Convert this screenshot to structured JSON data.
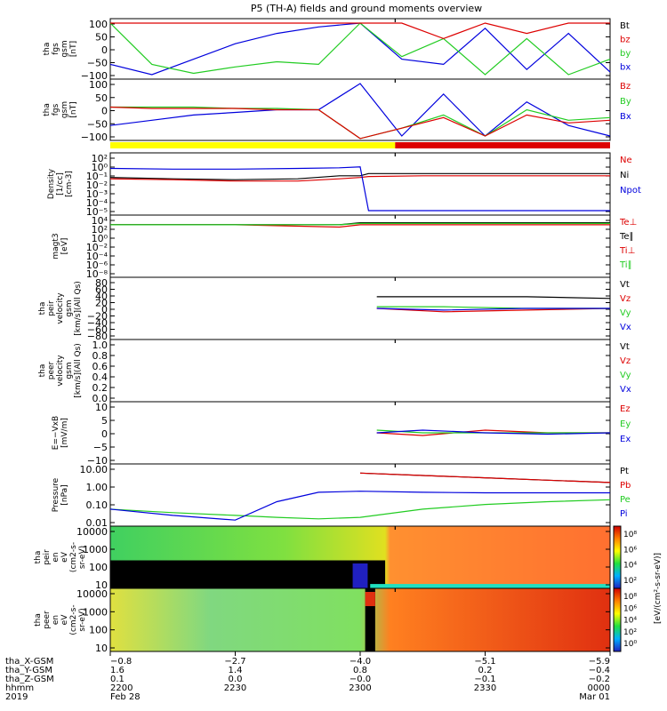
{
  "title": "P5 (TH-A) fields and ground moments overview",
  "colors": {
    "black": "#000000",
    "red": "#dd0000",
    "green": "#22cc22",
    "blue": "#0000dd",
    "yellow": "#ffff00",
    "bar_red": "#dd0000"
  },
  "panels": [
    {
      "id": "fgs-gsm",
      "ylabel": [
        "tha",
        "fgs",
        "gsm",
        "[nT]"
      ],
      "ticks": [
        "100",
        "50",
        "0",
        "−50",
        "−100"
      ],
      "ylim": [
        -100,
        100
      ],
      "scale": "linear",
      "legend": [
        {
          "text": "Bt",
          "color": "#000000"
        },
        {
          "text": "bz",
          "color": "#dd0000"
        },
        {
          "text": "by",
          "color": "#22cc22"
        },
        {
          "text": "bx",
          "color": "#0000dd"
        }
      ]
    },
    {
      "id": "fgs-gsm-2",
      "ylabel": [
        "tha",
        "fgs",
        "gsm",
        "[nT]"
      ],
      "ticks": [
        "100",
        "50",
        "0",
        "−50",
        "−100"
      ],
      "ylim": [
        -100,
        100
      ],
      "scale": "linear",
      "legend": [
        {
          "text": "Bz",
          "color": "#dd0000"
        },
        {
          "text": "By",
          "color": "#22cc22"
        },
        {
          "text": "Bx",
          "color": "#0000dd"
        }
      ]
    },
    {
      "id": "density",
      "ylabel": [
        "Density",
        "[1/cc]",
        "[cm-3]"
      ],
      "ticks": [
        "10²",
        "10⁰",
        "10⁻¹",
        "10⁻²",
        "10⁻³",
        "10⁻⁴",
        "10⁻⁵"
      ],
      "scale": "log",
      "legend": [
        {
          "text": "Ne",
          "color": "#dd0000"
        },
        {
          "text": "Ni",
          "color": "#000000"
        },
        {
          "text": "Npot",
          "color": "#0000dd"
        }
      ]
    },
    {
      "id": "temperature",
      "ylabel": [
        "magt3",
        "[eV]"
      ],
      "ticks": [
        "10⁴",
        "10²",
        "10⁰",
        "10⁻²",
        "10⁻⁴",
        "10⁻⁶",
        "10⁻⁸"
      ],
      "scale": "log",
      "legend": [
        {
          "text": "Te⊥",
          "color": "#dd0000"
        },
        {
          "text": "Te∥",
          "color": "#000000"
        },
        {
          "text": "Ti⊥",
          "color": "#dd0000"
        },
        {
          "text": "Ti∥",
          "color": "#22cc22"
        }
      ]
    },
    {
      "id": "peir-velocity",
      "ylabel": [
        "tha",
        "peir",
        "velocity",
        "gsm",
        "[km/s](All Qs)"
      ],
      "ticks": [
        "80",
        "60",
        "40",
        "20",
        "0",
        "−20",
        "−40",
        "−60",
        "−80"
      ],
      "ylim": [
        -80,
        80
      ],
      "scale": "linear",
      "legend": [
        {
          "text": "Vt",
          "color": "#000000"
        },
        {
          "text": "Vz",
          "color": "#dd0000"
        },
        {
          "text": "Vy",
          "color": "#22cc22"
        },
        {
          "text": "Vx",
          "color": "#0000dd"
        }
      ]
    },
    {
      "id": "peer-velocity",
      "ylabel": [
        "tha",
        "peer",
        "velocity",
        "gsm",
        "[km/s](All Qs)"
      ],
      "ticks": [
        "1.0",
        "0.8",
        "0.6",
        "0.4",
        "0.2",
        "0.0"
      ],
      "ylim": [
        0,
        1
      ],
      "scale": "linear",
      "legend": [
        {
          "text": "Vt",
          "color": "#000000"
        },
        {
          "text": "Vz",
          "color": "#dd0000"
        },
        {
          "text": "Vy",
          "color": "#22cc22"
        },
        {
          "text": "Vx",
          "color": "#0000dd"
        }
      ]
    },
    {
      "id": "e-field",
      "ylabel": [
        "E=−VxB",
        "[mV/m]"
      ],
      "ticks": [
        "10",
        "5",
        "0",
        "−5",
        "−10"
      ],
      "ylim": [
        -10,
        10
      ],
      "scale": "linear",
      "legend": [
        {
          "text": "Ez",
          "color": "#dd0000"
        },
        {
          "text": "Ey",
          "color": "#22cc22"
        },
        {
          "text": "Ex",
          "color": "#0000dd"
        }
      ]
    },
    {
      "id": "pressure",
      "ylabel": [
        "Pressure",
        "[nPa]"
      ],
      "ticks": [
        "10.00",
        "1.00",
        "0.10",
        "0.01"
      ],
      "scale": "log",
      "legend": [
        {
          "text": "Pt",
          "color": "#000000"
        },
        {
          "text": "Pb",
          "color": "#dd0000"
        },
        {
          "text": "Pe",
          "color": "#22cc22"
        },
        {
          "text": "Pi",
          "color": "#0000dd"
        }
      ]
    },
    {
      "id": "peir-spectrogram",
      "ylabel": [
        "tha",
        "peir",
        "en",
        "eV",
        "(cm2-s-",
        "sr-eV)"
      ],
      "ticks": [
        "10000",
        "1000",
        "100",
        "10"
      ],
      "scale": "log",
      "spectrogram": true
    },
    {
      "id": "peer-spectrogram",
      "ylabel": [
        "tha",
        "peer",
        "en",
        "eV",
        "(cm2-s-",
        "sr-eV)"
      ],
      "ticks": [
        "10000",
        "1000",
        "100",
        "10"
      ],
      "scale": "log",
      "spectrogram": true
    }
  ],
  "colorbar": {
    "label": "[eV/(cm²-s-sr-eV)]",
    "ticks_top": [
      "10⁸",
      "10⁶",
      "10⁴",
      "10²"
    ],
    "ticks_bottom": [
      "10⁸",
      "10⁶",
      "10⁴",
      "10²",
      "10⁰"
    ]
  },
  "mode_bar": {
    "segments": [
      {
        "from": 0,
        "to": 0.57,
        "color": "#ffff00"
      },
      {
        "from": 0.57,
        "to": 1,
        "color": "#dd0000"
      }
    ]
  },
  "bottom_axis": {
    "row_labels": [
      "tha_X-GSM",
      "tha_Y-GSM",
      "tha_Z-GSM",
      "hhmm",
      "2019"
    ],
    "columns": [
      {
        "x": "−0.8",
        "y": "1.6",
        "z": "0.1",
        "hhmm": "2200",
        "date": "Feb 28"
      },
      {
        "x": "−2.7",
        "y": "1.4",
        "z": "0.0",
        "hhmm": "2230",
        "date": ""
      },
      {
        "x": "−4.0",
        "y": "0.8",
        "z": "−0.0",
        "hhmm": "2300",
        "date": ""
      },
      {
        "x": "−5.1",
        "y": "0.2",
        "z": "−0.1",
        "hhmm": "2330",
        "date": ""
      },
      {
        "x": "−5.9",
        "y": "−0.4",
        "z": "−0.2",
        "hhmm": "0000",
        "date": "Mar 01"
      }
    ]
  },
  "chart_data": {
    "type": "line",
    "title": "P5 (TH-A) fields and ground moments overview",
    "x_ticks": [
      "2200",
      "2230",
      "2300",
      "2330",
      "0000"
    ],
    "panels": [
      {
        "name": "tha fgs gsm [nT]",
        "ylim": [
          -100,
          100
        ],
        "x": [
          2200,
          2210,
          2220,
          2230,
          2240,
          2250,
          2300,
          2310,
          2320,
          2330,
          2340,
          2350,
          2400
        ],
        "series": [
          {
            "name": "bx",
            "values": [
              -60,
              -100,
              -40,
              20,
              60,
              85,
              100,
              -40,
              -60,
              80,
              -80,
              60,
              -90
            ]
          },
          {
            "name": "by",
            "values": [
              100,
              -60,
              -95,
              -70,
              -50,
              -60,
              100,
              -30,
              40,
              -100,
              40,
              -100,
              -40
            ]
          },
          {
            "name": "bz",
            "values": [
              100,
              100,
              100,
              100,
              100,
              100,
              100,
              100,
              40,
              100,
              60,
              100,
              100
            ]
          }
        ]
      },
      {
        "name": "tha fgs gsm [nT] (2)",
        "ylim": [
          -100,
          100
        ],
        "x": [
          2200,
          2210,
          2220,
          2230,
          2240,
          2250,
          2300,
          2310,
          2320,
          2330,
          2340,
          2350,
          2400
        ],
        "series": [
          {
            "name": "Bx",
            "values": [
              -60,
              -40,
              -20,
              -10,
              0,
              0,
              100,
              -100,
              60,
              -100,
              30,
              -60,
              -100
            ]
          },
          {
            "name": "By",
            "values": [
              10,
              10,
              10,
              5,
              5,
              0,
              -110,
              -70,
              -20,
              -100,
              0,
              -40,
              -30
            ]
          },
          {
            "name": "Bz",
            "values": [
              10,
              5,
              5,
              5,
              0,
              0,
              -110,
              -70,
              -30,
              -100,
              -20,
              -50,
              -40
            ]
          }
        ]
      },
      {
        "name": "Density [cm-3]",
        "scale": "log",
        "x": [
          2200,
          2215,
          2230,
          2245,
          2255,
          2300,
          2302,
          2315,
          2330,
          2345,
          2400
        ],
        "series": [
          {
            "name": "Ni",
            "values": [
              0.3,
              0.2,
              0.15,
              0.2,
              0.5,
              0.5,
              1,
              1,
              1,
              1,
              1
            ]
          },
          {
            "name": "Ne",
            "values": [
              0.2,
              0.15,
              0.1,
              0.1,
              0.2,
              0.3,
              0.4,
              0.5,
              0.5,
              0.5,
              0.5
            ]
          },
          {
            "name": "Npot",
            "values": [
              5,
              4,
              4,
              5,
              6,
              8,
              1e-05,
              1e-05,
              1e-05,
              1e-05,
              1e-05
            ]
          }
        ]
      },
      {
        "name": "magt3 [eV]",
        "scale": "log",
        "x": [
          2200,
          2230,
          2255,
          2300,
          2330,
          2400
        ],
        "series": [
          {
            "name": "Te⊥",
            "values": [
              1000,
              1000,
              300,
              1000,
              1000,
              1000
            ]
          },
          {
            "name": "Te∥",
            "values": [
              1000,
              1000,
              1000,
              3000,
              3000,
              3000
            ]
          },
          {
            "name": "Ti∥",
            "values": [
              1000,
              1000,
              1000,
              2000,
              2000,
              2000
            ]
          }
        ]
      },
      {
        "name": "tha peir velocity gsm [km/s]",
        "ylim": [
          -80,
          80
        ],
        "x": [
          2304,
          2320,
          2340,
          2400
        ],
        "series": [
          {
            "name": "Vt",
            "values": [
              35,
              35,
              35,
              30
            ]
          },
          {
            "name": "Vz",
            "values": [
              0,
              -10,
              -5,
              0
            ]
          },
          {
            "name": "Vy",
            "values": [
              5,
              5,
              0,
              0
            ]
          },
          {
            "name": "Vx",
            "values": [
              0,
              -5,
              0,
              0
            ]
          }
        ]
      },
      {
        "name": "E=-VxB [mV/m]",
        "ylim": [
          -10,
          10
        ],
        "x": [
          2304,
          2315,
          2330,
          2345,
          2400
        ],
        "series": [
          {
            "name": "Ez",
            "values": [
              0,
              -1,
              1,
              0,
              0
            ]
          },
          {
            "name": "Ey",
            "values": [
              1,
              0,
              0,
              0,
              0
            ]
          },
          {
            "name": "Ex",
            "values": [
              0,
              1,
              0,
              -0.5,
              0
            ]
          }
        ]
      },
      {
        "name": "Pressure [nPa]",
        "scale": "log",
        "x": [
          2200,
          2215,
          2230,
          2240,
          2250,
          2300,
          2315,
          2330,
          2345,
          2400
        ],
        "series": [
          {
            "name": "Pt",
            "values": [
              null,
              null,
              null,
              null,
              null,
              10,
              7,
              5,
              3.5,
              2.5
            ]
          },
          {
            "name": "Pb",
            "values": [
              null,
              null,
              null,
              null,
              null,
              10,
              7,
              5,
              3.5,
              2.5
            ]
          },
          {
            "name": "Pe",
            "values": [
              0.05,
              0.03,
              0.02,
              0.015,
              0.012,
              0.015,
              0.05,
              0.1,
              0.15,
              0.2
            ]
          },
          {
            "name": "Pi",
            "values": [
              0.05,
              0.02,
              0.01,
              0.15,
              0.6,
              0.7,
              0.6,
              0.55,
              0.55,
              0.55
            ]
          }
        ]
      }
    ]
  }
}
